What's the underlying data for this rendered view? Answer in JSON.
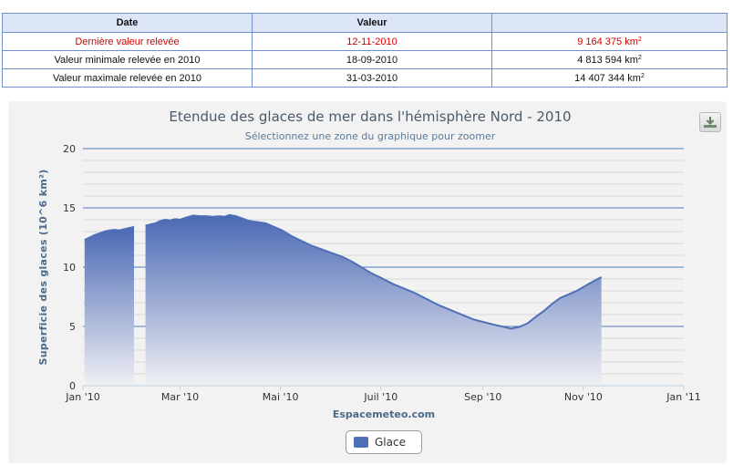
{
  "table": {
    "headers": [
      "Date",
      "Valeur",
      ""
    ],
    "rows": [
      {
        "label": "Dernière valeur relevée",
        "date": "12-11-2010",
        "value": "9 164 375 km",
        "unit_sup": "2"
      },
      {
        "label": "Valeur minimale relevée en 2010",
        "date": "18-09-2010",
        "value": "4 813 594 km",
        "unit_sup": "2"
      },
      {
        "label": "Valeur maximale relevée en 2010",
        "date": "31-03-2010",
        "value": "14 407 344 km",
        "unit_sup": "2"
      }
    ]
  },
  "chart_data": {
    "type": "area",
    "title": "Etendue des glaces de mer dans l'hémisphère Nord - 2010",
    "subtitle": "Sélectionnez une zone du graphique pour zoomer",
    "ylabel": "Superficie des glaces (10^6 km²)",
    "xlabel": "",
    "ylim": [
      0,
      20
    ],
    "yticks": [
      0,
      5,
      10,
      15,
      20
    ],
    "xlim": [
      "2010-01-01",
      "2011-01-01"
    ],
    "xtick_labels": [
      "Jan '10",
      "Mar '10",
      "Mai '10",
      "Juil '10",
      "Sep '10",
      "Nov '10",
      "Jan '11"
    ],
    "credit": "Espacemeteo.com",
    "grid": true,
    "legend_position": "bottom-center",
    "series": [
      {
        "name": "Glace",
        "color": "#4f6fb7",
        "points": [
          [
            "2010-01-02",
            12.3
          ],
          [
            "2010-01-05",
            12.5
          ],
          [
            "2010-01-08",
            12.7
          ],
          [
            "2010-01-11",
            12.85
          ],
          [
            "2010-01-14",
            13.0
          ],
          [
            "2010-01-17",
            13.1
          ],
          [
            "2010-01-20",
            13.15
          ],
          [
            "2010-01-23",
            13.1
          ],
          [
            "2010-01-26",
            13.2
          ],
          [
            "2010-01-29",
            13.3
          ],
          [
            "2010-02-01",
            13.4
          ],
          null,
          [
            "2010-02-08",
            13.5
          ],
          [
            "2010-02-11",
            13.6
          ],
          [
            "2010-02-14",
            13.7
          ],
          [
            "2010-02-17",
            13.9
          ],
          [
            "2010-02-20",
            14.0
          ],
          [
            "2010-02-23",
            13.95
          ],
          [
            "2010-02-26",
            14.05
          ],
          [
            "2010-03-01",
            14.0
          ],
          [
            "2010-03-05",
            14.2
          ],
          [
            "2010-03-09",
            14.35
          ],
          [
            "2010-03-13",
            14.3
          ],
          [
            "2010-03-17",
            14.3
          ],
          [
            "2010-03-21",
            14.25
          ],
          [
            "2010-03-25",
            14.3
          ],
          [
            "2010-03-28",
            14.25
          ],
          [
            "2010-03-31",
            14.4
          ],
          [
            "2010-04-04",
            14.3
          ],
          [
            "2010-04-08",
            14.1
          ],
          [
            "2010-04-12",
            13.9
          ],
          [
            "2010-04-17",
            13.8
          ],
          [
            "2010-04-22",
            13.7
          ],
          [
            "2010-04-27",
            13.4
          ],
          [
            "2010-05-02",
            13.1
          ],
          [
            "2010-05-08",
            12.6
          ],
          [
            "2010-05-14",
            12.2
          ],
          [
            "2010-05-20",
            11.8
          ],
          [
            "2010-05-26",
            11.5
          ],
          [
            "2010-06-01",
            11.2
          ],
          [
            "2010-06-07",
            10.9
          ],
          [
            "2010-06-13",
            10.5
          ],
          [
            "2010-06-19",
            10.0
          ],
          [
            "2010-06-25",
            9.5
          ],
          [
            "2010-07-01",
            9.1
          ],
          [
            "2010-07-08",
            8.6
          ],
          [
            "2010-07-15",
            8.2
          ],
          [
            "2010-07-22",
            7.8
          ],
          [
            "2010-07-29",
            7.3
          ],
          [
            "2010-08-05",
            6.8
          ],
          [
            "2010-08-12",
            6.4
          ],
          [
            "2010-08-19",
            6.0
          ],
          [
            "2010-08-26",
            5.6
          ],
          [
            "2010-09-02",
            5.35
          ],
          [
            "2010-09-09",
            5.1
          ],
          [
            "2010-09-14",
            4.95
          ],
          [
            "2010-09-18",
            4.81
          ],
          [
            "2010-09-23",
            4.95
          ],
          [
            "2010-09-28",
            5.25
          ],
          [
            "2010-10-03",
            5.8
          ],
          [
            "2010-10-08",
            6.3
          ],
          [
            "2010-10-13",
            6.9
          ],
          [
            "2010-10-18",
            7.4
          ],
          [
            "2010-10-23",
            7.7
          ],
          [
            "2010-10-28",
            8.0
          ],
          [
            "2010-11-02",
            8.4
          ],
          [
            "2010-11-07",
            8.8
          ],
          [
            "2010-11-12",
            9.16
          ]
        ]
      }
    ]
  },
  "export_button": {
    "icon": "download-icon"
  },
  "legend": {
    "label": "Glace",
    "color": "#4f6fb7"
  }
}
